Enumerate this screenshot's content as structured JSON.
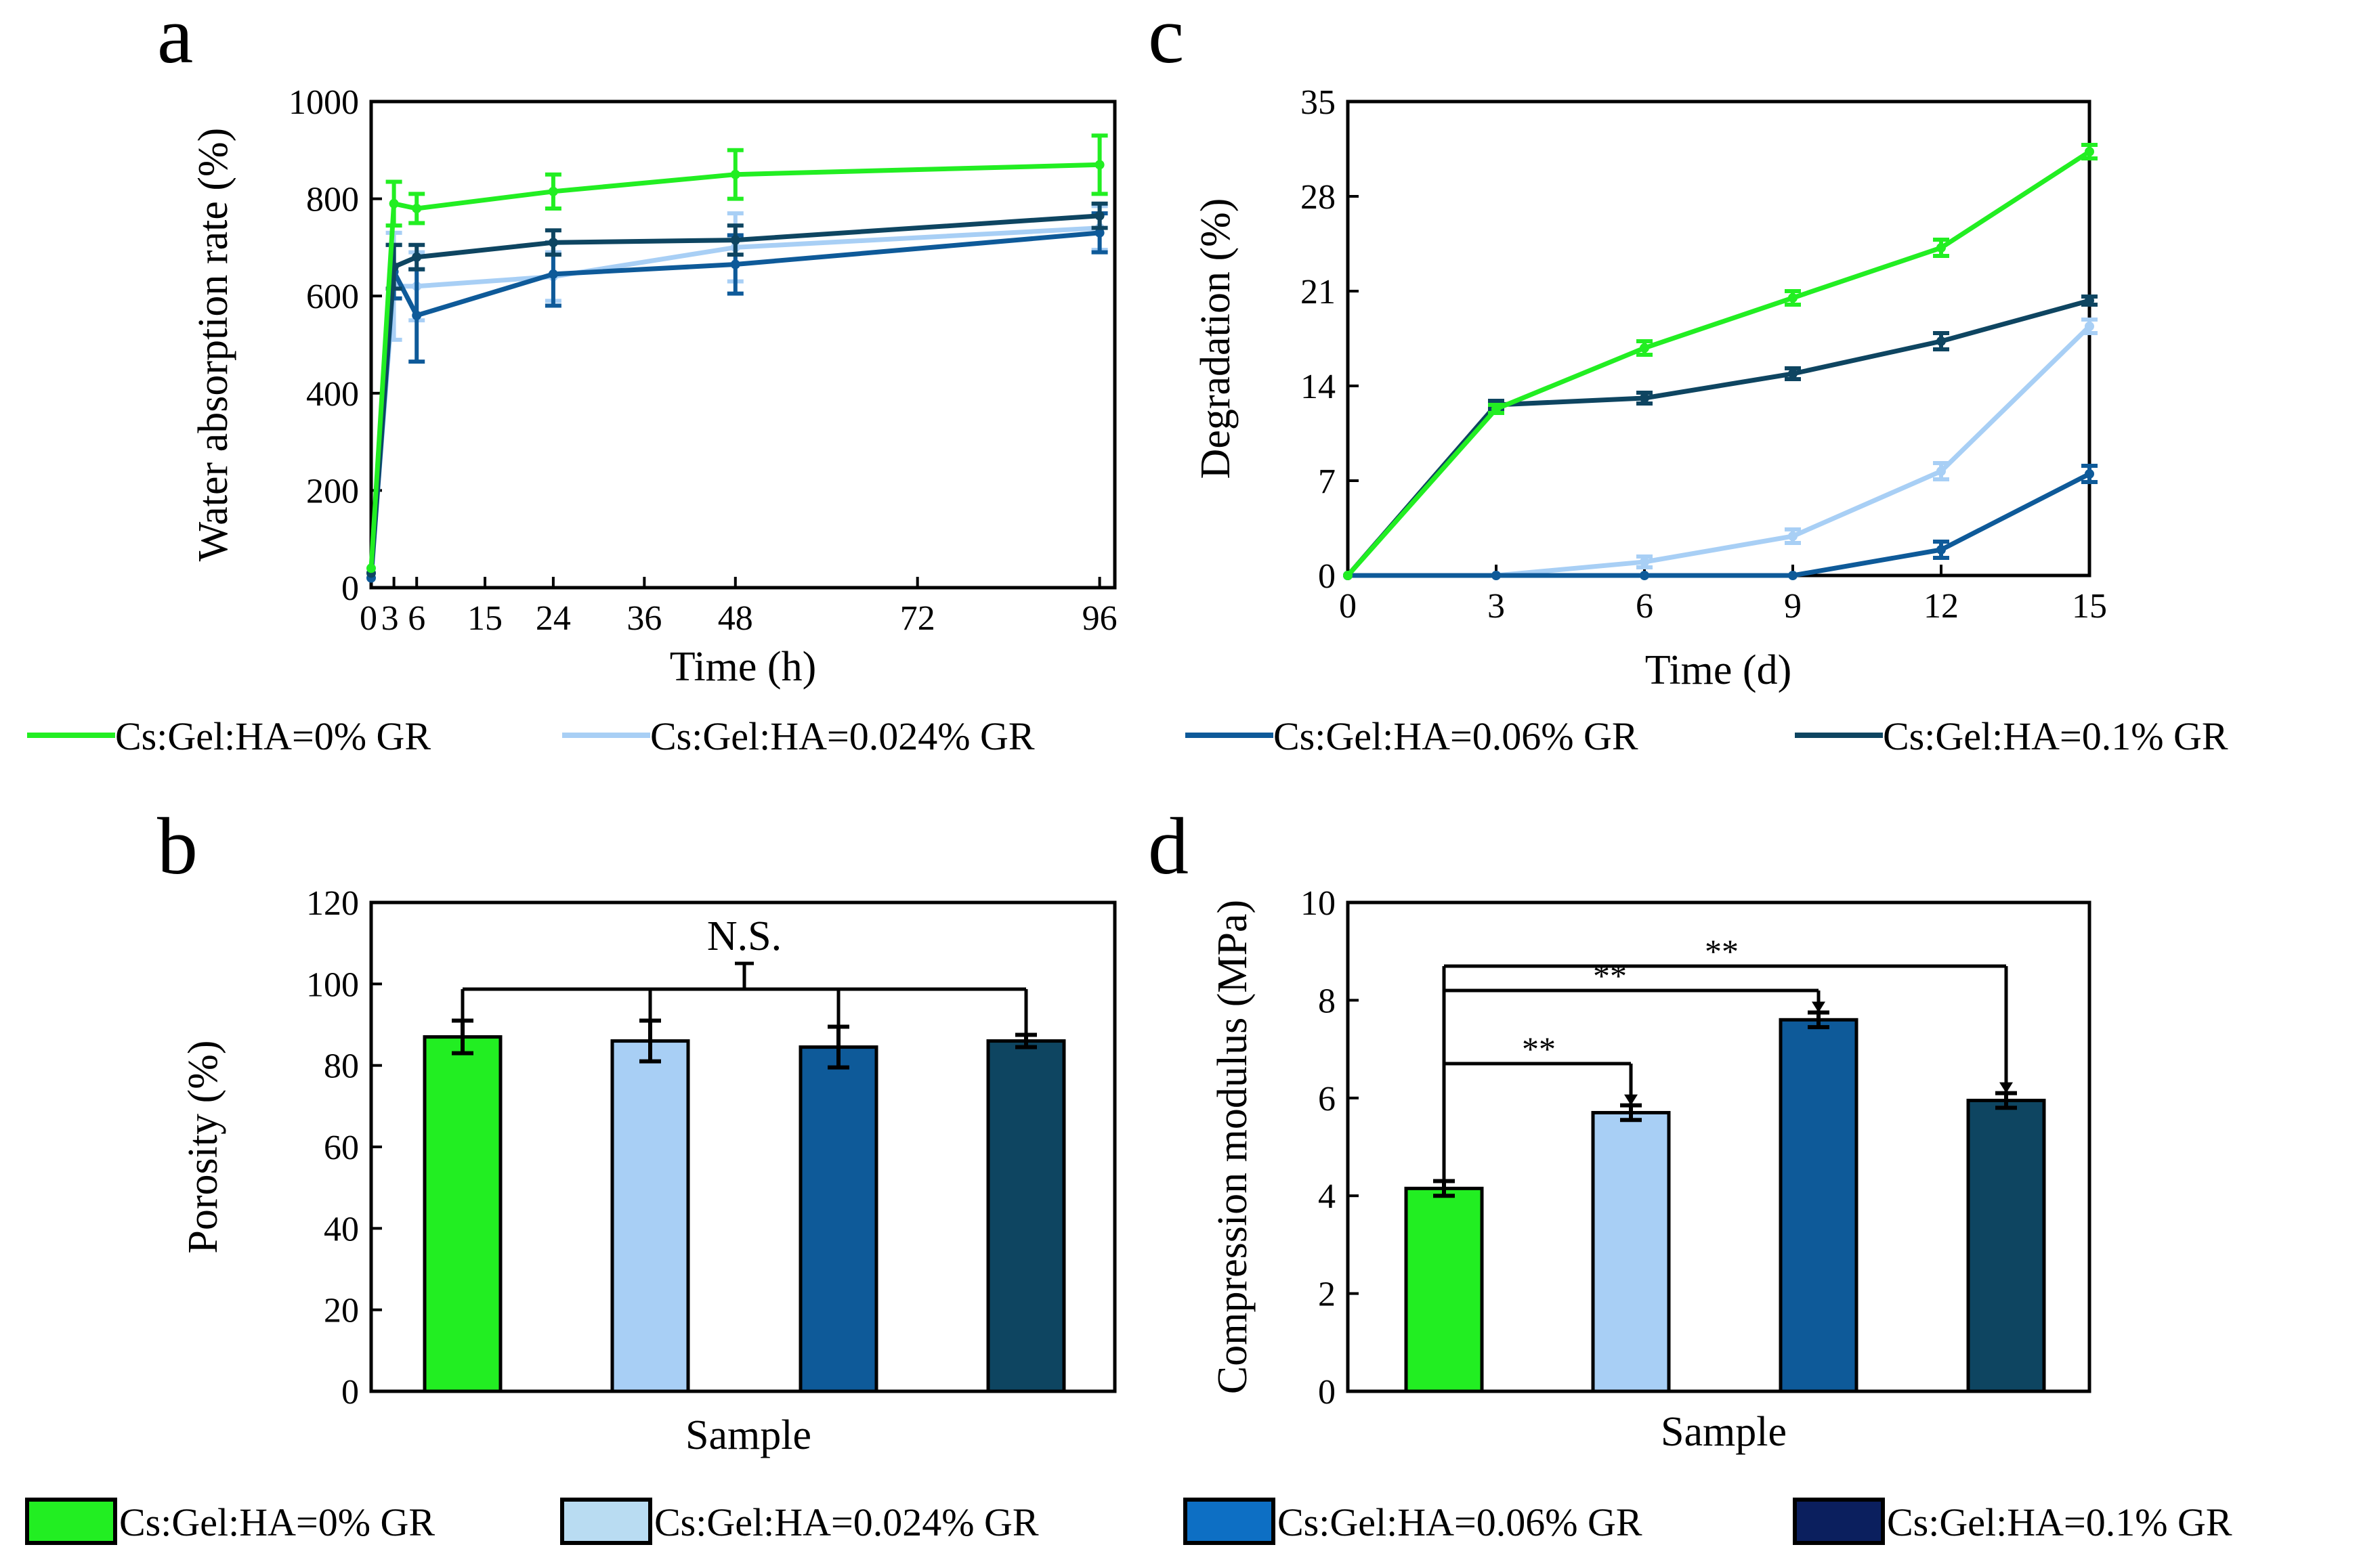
{
  "colors": {
    "c0": "#22ee22",
    "c024": "#a8cff5",
    "c06": "#0e5a99",
    "c1": "#0e4561",
    "legend_c024": "#b9dcf2",
    "legend_c06": "#0d6fc4",
    "legend_c1": "#0b1f5e"
  },
  "legend": {
    "line_labels": [
      "Cs:Gel:HA=0% GR",
      "Cs:Gel:HA=0.024% GR",
      "Cs:Gel:HA=0.06% GR",
      "Cs:Gel:HA=0.1% GR"
    ],
    "bar_labels": [
      "Cs:Gel:HA=0% GR",
      "Cs:Gel:HA=0.024% GR",
      "Cs:Gel:HA=0.06% GR",
      "Cs:Gel:HA=0.1% GR"
    ]
  },
  "chart_data": [
    {
      "panel": "a",
      "type": "line",
      "xlabel": "Time (h)",
      "ylabel": "Water absorption rate (%)",
      "xlim": [
        0,
        98
      ],
      "ylim": [
        0,
        1000
      ],
      "xticks": [
        0,
        3,
        6,
        15,
        24,
        36,
        48,
        72,
        96
      ],
      "xtick_labels": [
        "0",
        "3",
        "6",
        "15",
        "24",
        "36",
        "48",
        "72",
        "96"
      ],
      "yticks": [
        0,
        200,
        400,
        600,
        800,
        1000
      ],
      "series": [
        {
          "name": "Cs:Gel:HA=0% GR",
          "x": [
            0,
            3,
            6,
            24,
            48,
            96
          ],
          "values": [
            40,
            790,
            780,
            815,
            850,
            870
          ],
          "errors": [
            0,
            45,
            30,
            35,
            50,
            60
          ]
        },
        {
          "name": "Cs:Gel:HA=0.024% GR",
          "x": [
            0,
            3,
            6,
            24,
            48,
            96
          ],
          "values": [
            30,
            620,
            620,
            640,
            700,
            740
          ],
          "errors": [
            0,
            110,
            70,
            50,
            70,
            45
          ]
        },
        {
          "name": "Cs:Gel:HA=0.06% GR",
          "x": [
            0,
            3,
            6,
            24,
            48,
            96
          ],
          "values": [
            20,
            650,
            560,
            645,
            665,
            730
          ],
          "errors": [
            0,
            55,
            95,
            65,
            60,
            40
          ]
        },
        {
          "name": "Cs:Gel:HA=0.1% GR",
          "x": [
            0,
            3,
            6,
            24,
            48,
            96
          ],
          "values": [
            30,
            660,
            680,
            710,
            715,
            765
          ],
          "errors": [
            0,
            45,
            25,
            25,
            30,
            25
          ]
        }
      ]
    },
    {
      "panel": "c",
      "type": "line",
      "xlabel": "Time (d)",
      "ylabel": "Degradation (%)",
      "xlim": [
        0,
        15
      ],
      "ylim": [
        0,
        35
      ],
      "xticks": [
        0,
        3,
        6,
        9,
        12,
        15
      ],
      "yticks": [
        0,
        7,
        14,
        21,
        28,
        35
      ],
      "series": [
        {
          "name": "Cs:Gel:HA=0% GR",
          "x": [
            0,
            3,
            6,
            9,
            12,
            15
          ],
          "values": [
            0,
            12.3,
            16.8,
            20.5,
            24.2,
            31.3
          ],
          "errors": [
            0,
            0.3,
            0.5,
            0.5,
            0.6,
            0.5
          ]
        },
        {
          "name": "Cs:Gel:HA=0.024% GR",
          "x": [
            0,
            3,
            6,
            9,
            12,
            15
          ],
          "values": [
            0,
            0,
            1.0,
            2.9,
            7.7,
            18.4
          ],
          "errors": [
            0,
            0,
            0.4,
            0.5,
            0.6,
            0.5
          ]
        },
        {
          "name": "Cs:Gel:HA=0.06% GR",
          "x": [
            0,
            3,
            6,
            9,
            12,
            15
          ],
          "values": [
            0,
            0,
            0,
            0,
            1.9,
            7.5
          ],
          "errors": [
            0,
            0,
            0,
            0,
            0.6,
            0.6
          ]
        },
        {
          "name": "Cs:Gel:HA=0.1% GR",
          "x": [
            0,
            3,
            6,
            9,
            12,
            15
          ],
          "values": [
            0,
            12.6,
            13.1,
            14.9,
            17.3,
            20.3
          ],
          "errors": [
            0,
            0.3,
            0.4,
            0.4,
            0.6,
            0.3
          ]
        }
      ]
    },
    {
      "panel": "b",
      "type": "bar",
      "xlabel": "Sample",
      "ylabel": "Porosity (%)",
      "ylim": [
        0,
        120
      ],
      "yticks": [
        0,
        20,
        40,
        60,
        80,
        100,
        120
      ],
      "categories": [
        "Cs:Gel:HA=0% GR",
        "Cs:Gel:HA=0.024% GR",
        "Cs:Gel:HA=0.06% GR",
        "Cs:Gel:HA=0.1% GR"
      ],
      "values": [
        87,
        86,
        84.5,
        86
      ],
      "errors": [
        4,
        5,
        5,
        1.5
      ],
      "annotation": "N.S."
    },
    {
      "panel": "d",
      "type": "bar",
      "xlabel": "Sample",
      "ylabel": "Compression modulus (MPa)",
      "ylim": [
        0,
        10
      ],
      "yticks": [
        0,
        2,
        4,
        6,
        8,
        10
      ],
      "categories": [
        "Cs:Gel:HA=0% GR",
        "Cs:Gel:HA=0.024% GR",
        "Cs:Gel:HA=0.06% GR",
        "Cs:Gel:HA=0.1% GR"
      ],
      "values": [
        4.15,
        5.7,
        7.6,
        5.95
      ],
      "errors": [
        0.15,
        0.15,
        0.15,
        0.15
      ],
      "significance": [
        {
          "from": 0,
          "to": 1,
          "label": "**"
        },
        {
          "from": 0,
          "to": 2,
          "label": "**"
        },
        {
          "from": 0,
          "to": 3,
          "label": "**"
        }
      ]
    }
  ]
}
